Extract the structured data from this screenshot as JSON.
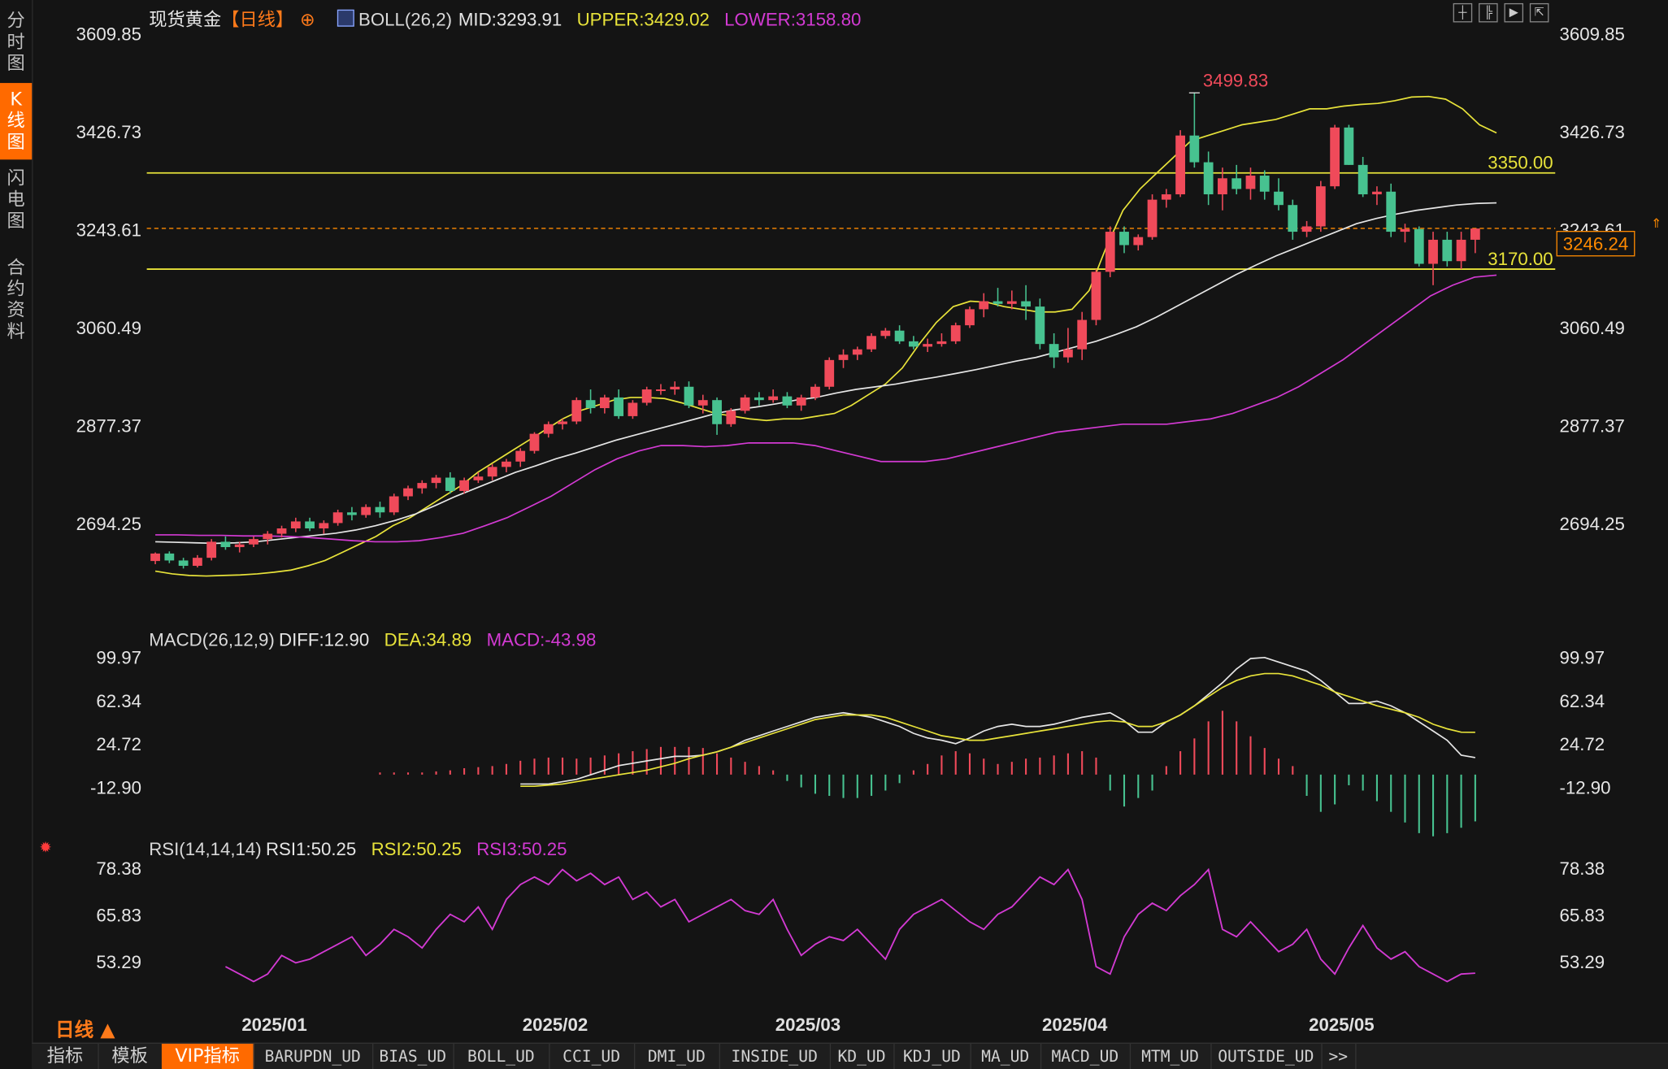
{
  "sidebar": {
    "tabs": [
      {
        "label": "分时图",
        "active": false
      },
      {
        "label": "K线图",
        "active": true
      },
      {
        "label": "闪电图",
        "active": false
      },
      {
        "label": "合约资料",
        "active": false
      }
    ]
  },
  "header": {
    "title": "现货黄金",
    "period_tag": "【日线】",
    "boll": "BOLL(26,2)",
    "mid": "MID:3293.91",
    "upper": "UPPER:3429.02",
    "lower": "LOWER:3158.80"
  },
  "macd_legend": {
    "name": "MACD(26,12,9)",
    "diff": "DIFF:12.90",
    "dea": "DEA:34.89",
    "macd": "MACD:-43.98"
  },
  "rsi_legend": {
    "name": "RSI(14,14,14)",
    "rsi1": "RSI1:50.25",
    "rsi2": "RSI2:50.25",
    "rsi3": "RSI3:50.25"
  },
  "period_selector": "日线 ▲",
  "current_price": "3246.24",
  "colors": {
    "up": "#f04a5a",
    "down": "#47c290",
    "boll_upper": "#e8e33a",
    "boll_mid": "#e6e6e6",
    "boll_lower": "#d33ad3",
    "accent": "#ff6a00"
  },
  "bottom_tabs": [
    {
      "label": "指标",
      "active": false
    },
    {
      "label": "模板",
      "active": false
    },
    {
      "label": "VIP指标",
      "active": true
    },
    {
      "label": "BARUPDN_UD",
      "active": false
    },
    {
      "label": "BIAS_UD",
      "active": false
    },
    {
      "label": "BOLL_UD",
      "active": false
    },
    {
      "label": "CCI_UD",
      "active": false
    },
    {
      "label": "DMI_UD",
      "active": false
    },
    {
      "label": "INSIDE_UD",
      "active": false
    },
    {
      "label": "KD_UD",
      "active": false
    },
    {
      "label": "KDJ_UD",
      "active": false
    },
    {
      "label": "MA_UD",
      "active": false
    },
    {
      "label": "MACD_UD",
      "active": false
    },
    {
      "label": "MTM_UD",
      "active": false
    },
    {
      "label": "OUTSIDE_UD",
      "active": false
    },
    {
      "label": ">>",
      "active": false
    }
  ],
  "chart_data": [
    {
      "type": "candlestick",
      "title": "现货黄金【日线】",
      "y_ticks": [
        "3609.85",
        "3426.73",
        "3243.61",
        "3060.49",
        "2877.37",
        "2694.25"
      ],
      "ylim": [
        2600,
        3610
      ],
      "x_ticks": [
        "2025/01",
        "2025/02",
        "2025/03",
        "2025/04",
        "2025/05"
      ],
      "x_tick_index": [
        6,
        26,
        44,
        63,
        82
      ],
      "annotations": [
        {
          "text": "3499.83",
          "value": 3499.83,
          "index": 74
        },
        {
          "text": "3350.00",
          "value": 3350.0,
          "type": "horizontal-line"
        },
        {
          "text": "3170.00",
          "value": 3170.0,
          "type": "horizontal-line"
        },
        {
          "text": "3246.24",
          "value": 3246.24,
          "type": "last-price-line"
        }
      ],
      "ohlc": [
        [
          2624,
          2640,
          2618,
          2638
        ],
        [
          2638,
          2642,
          2620,
          2625
        ],
        [
          2625,
          2630,
          2610,
          2615
        ],
        [
          2615,
          2635,
          2612,
          2630
        ],
        [
          2630,
          2665,
          2625,
          2660
        ],
        [
          2660,
          2670,
          2645,
          2650
        ],
        [
          2650,
          2660,
          2640,
          2655
        ],
        [
          2655,
          2670,
          2650,
          2665
        ],
        [
          2665,
          2680,
          2655,
          2675
        ],
        [
          2675,
          2690,
          2668,
          2685
        ],
        [
          2685,
          2705,
          2678,
          2698
        ],
        [
          2698,
          2705,
          2680,
          2685
        ],
        [
          2685,
          2700,
          2675,
          2695
        ],
        [
          2695,
          2720,
          2690,
          2715
        ],
        [
          2715,
          2725,
          2700,
          2710
        ],
        [
          2710,
          2730,
          2705,
          2725
        ],
        [
          2725,
          2735,
          2705,
          2715
        ],
        [
          2715,
          2750,
          2710,
          2745
        ],
        [
          2745,
          2765,
          2738,
          2760
        ],
        [
          2760,
          2775,
          2750,
          2770
        ],
        [
          2770,
          2785,
          2760,
          2780
        ],
        [
          2780,
          2790,
          2750,
          2755
        ],
        [
          2755,
          2780,
          2750,
          2775
        ],
        [
          2775,
          2790,
          2770,
          2782
        ],
        [
          2782,
          2805,
          2775,
          2800
        ],
        [
          2800,
          2815,
          2790,
          2810
        ],
        [
          2810,
          2835,
          2800,
          2830
        ],
        [
          2830,
          2865,
          2825,
          2862
        ],
        [
          2862,
          2885,
          2855,
          2880
        ],
        [
          2880,
          2890,
          2870,
          2885
        ],
        [
          2885,
          2930,
          2880,
          2925
        ],
        [
          2925,
          2945,
          2900,
          2910
        ],
        [
          2910,
          2935,
          2900,
          2930
        ],
        [
          2930,
          2945,
          2890,
          2895
        ],
        [
          2895,
          2925,
          2890,
          2920
        ],
        [
          2920,
          2950,
          2915,
          2945
        ],
        [
          2945,
          2955,
          2935,
          2945
        ],
        [
          2945,
          2960,
          2935,
          2950
        ],
        [
          2950,
          2960,
          2910,
          2915
        ],
        [
          2915,
          2935,
          2900,
          2925
        ],
        [
          2925,
          2930,
          2860,
          2880
        ],
        [
          2880,
          2910,
          2875,
          2905
        ],
        [
          2905,
          2935,
          2900,
          2930
        ],
        [
          2930,
          2940,
          2915,
          2925
        ],
        [
          2925,
          2945,
          2920,
          2932
        ],
        [
          2932,
          2940,
          2910,
          2915
        ],
        [
          2915,
          2935,
          2905,
          2930
        ],
        [
          2930,
          2955,
          2925,
          2950
        ],
        [
          2950,
          3005,
          2945,
          3000
        ],
        [
          3000,
          3020,
          2985,
          3010
        ],
        [
          3010,
          3025,
          3000,
          3020
        ],
        [
          3020,
          3050,
          3015,
          3045
        ],
        [
          3045,
          3060,
          3040,
          3055
        ],
        [
          3055,
          3065,
          3030,
          3035
        ],
        [
          3035,
          3045,
          3020,
          3025
        ],
        [
          3025,
          3040,
          3015,
          3030
        ],
        [
          3030,
          3050,
          3025,
          3035
        ],
        [
          3035,
          3070,
          3030,
          3065
        ],
        [
          3065,
          3100,
          3060,
          3095
        ],
        [
          3095,
          3125,
          3080,
          3110
        ],
        [
          3110,
          3135,
          3100,
          3105
        ],
        [
          3105,
          3130,
          3095,
          3110
        ],
        [
          3110,
          3140,
          3075,
          3100
        ],
        [
          3100,
          3115,
          3020,
          3030
        ],
        [
          3030,
          3050,
          2985,
          3005
        ],
        [
          3005,
          3060,
          2995,
          3020
        ],
        [
          3020,
          3090,
          3000,
          3075
        ],
        [
          3075,
          3170,
          3065,
          3165
        ],
        [
          3165,
          3250,
          3155,
          3240
        ],
        [
          3240,
          3250,
          3200,
          3215
        ],
        [
          3215,
          3235,
          3205,
          3230
        ],
        [
          3230,
          3310,
          3225,
          3300
        ],
        [
          3300,
          3320,
          3285,
          3310
        ],
        [
          3310,
          3430,
          3305,
          3420
        ],
        [
          3420,
          3500,
          3360,
          3370
        ],
        [
          3370,
          3390,
          3290,
          3310
        ],
        [
          3310,
          3360,
          3280,
          3340
        ],
        [
          3340,
          3365,
          3310,
          3320
        ],
        [
          3320,
          3360,
          3300,
          3345
        ],
        [
          3345,
          3355,
          3300,
          3315
        ],
        [
          3315,
          3340,
          3280,
          3290
        ],
        [
          3290,
          3300,
          3225,
          3240
        ],
        [
          3240,
          3260,
          3230,
          3250
        ],
        [
          3250,
          3335,
          3240,
          3325
        ],
        [
          3325,
          3440,
          3320,
          3435
        ],
        [
          3435,
          3440,
          3365,
          3365
        ],
        [
          3365,
          3380,
          3305,
          3310
        ],
        [
          3310,
          3325,
          3290,
          3315
        ],
        [
          3315,
          3330,
          3230,
          3240
        ],
        [
          3240,
          3255,
          3220,
          3245
        ],
        [
          3245,
          3250,
          3175,
          3180
        ],
        [
          3180,
          3240,
          3140,
          3225
        ],
        [
          3225,
          3240,
          3175,
          3185
        ],
        [
          3185,
          3240,
          3170,
          3225
        ],
        [
          3225,
          3245,
          3200,
          3246
        ]
      ],
      "boll_upper": [
        2605,
        2600,
        2597,
        2596,
        2597,
        2598,
        2600,
        2603,
        2607,
        2615,
        2625,
        2640,
        2655,
        2670,
        2690,
        2705,
        2725,
        2745,
        2765,
        2790,
        2810,
        2830,
        2850,
        2870,
        2890,
        2905,
        2915,
        2925,
        2930,
        2930,
        2928,
        2920,
        2910,
        2900,
        2895,
        2890,
        2887,
        2890,
        2890,
        2895,
        2900,
        2915,
        2935,
        2955,
        2985,
        3030,
        3070,
        3100,
        3110,
        3108,
        3100,
        3095,
        3090,
        3090,
        3095,
        3130,
        3210,
        3280,
        3320,
        3350,
        3380,
        3410,
        3420,
        3430,
        3440,
        3445,
        3450,
        3460,
        3470,
        3470,
        3475,
        3478,
        3480,
        3485,
        3492,
        3493,
        3488,
        3470,
        3440,
        3425
      ],
      "boll_mid": [
        2660,
        2659,
        2658,
        2657,
        2658,
        2660,
        2664,
        2668,
        2672,
        2676,
        2682,
        2690,
        2700,
        2712,
        2728,
        2745,
        2760,
        2775,
        2790,
        2802,
        2815,
        2826,
        2838,
        2850,
        2860,
        2870,
        2880,
        2890,
        2900,
        2907,
        2912,
        2918,
        2925,
        2930,
        2938,
        2945,
        2950,
        2955,
        2962,
        2968,
        2975,
        2982,
        2990,
        2998,
        3005,
        3015,
        3025,
        3035,
        3048,
        3062,
        3080,
        3100,
        3120,
        3140,
        3160,
        3178,
        3195,
        3210,
        3225,
        3240,
        3255,
        3265,
        3273,
        3280,
        3285,
        3290,
        3293,
        3293.91
      ],
      "boll_lower": [
        2673,
        2673,
        2672,
        2672,
        2671,
        2671,
        2670,
        2668,
        2665,
        2662,
        2660,
        2660,
        2662,
        2668,
        2676,
        2690,
        2705,
        2725,
        2745,
        2770,
        2795,
        2815,
        2830,
        2840,
        2840,
        2838,
        2840,
        2845,
        2845,
        2845,
        2840,
        2830,
        2820,
        2810,
        2810,
        2810,
        2815,
        2825,
        2835,
        2845,
        2855,
        2865,
        2870,
        2875,
        2880,
        2880,
        2880,
        2885,
        2890,
        2900,
        2915,
        2930,
        2950,
        2975,
        3000,
        3030,
        3060,
        3090,
        3120,
        3140,
        3155,
        3158.8
      ]
    },
    {
      "type": "macd",
      "title": "MACD(26,12,9)",
      "y_ticks": [
        "99.97",
        "62.34",
        "24.72",
        "-12.90"
      ],
      "ylim": [
        -50,
        110
      ],
      "diff": [
        -10,
        -10,
        -10,
        -8,
        -6,
        -2,
        2,
        6,
        8,
        10,
        12,
        14,
        14,
        15,
        18,
        22,
        28,
        32,
        36,
        40,
        44,
        48,
        50,
        52,
        50,
        48,
        44,
        40,
        34,
        30,
        28,
        25,
        30,
        36,
        40,
        42,
        40,
        40,
        42,
        45,
        48,
        50,
        52,
        45,
        35,
        35,
        44,
        50,
        58,
        68,
        78,
        90,
        99,
        100,
        96,
        92,
        88,
        80,
        70,
        60,
        60,
        62,
        58,
        52,
        44,
        36,
        28,
        15,
        12.9
      ],
      "dea": [
        -12,
        -12,
        -11,
        -10,
        -8,
        -6,
        -4,
        -2,
        0,
        2,
        5,
        8,
        12,
        15,
        18,
        22,
        26,
        30,
        34,
        38,
        42,
        46,
        48,
        50,
        50,
        50,
        48,
        44,
        40,
        36,
        32,
        30,
        28,
        28,
        30,
        32,
        34,
        36,
        38,
        40,
        42,
        44,
        45,
        44,
        40,
        40,
        44,
        50,
        58,
        66,
        74,
        80,
        84,
        86,
        86,
        84,
        80,
        76,
        70,
        66,
        62,
        58,
        55,
        52,
        48,
        42,
        38,
        35,
        34.89
      ],
      "macd_hist": [
        2,
        2,
        2,
        2,
        3,
        4,
        6,
        7,
        8,
        10,
        13,
        15,
        16,
        16,
        15,
        16,
        18,
        20,
        22,
        24,
        26,
        26,
        26,
        25,
        20,
        16,
        12,
        8,
        4,
        -6,
        -12,
        -18,
        -20,
        -22,
        -22,
        -20,
        -15,
        -8,
        4,
        10,
        18,
        22,
        20,
        15,
        10,
        12,
        15,
        16,
        18,
        20,
        22,
        16,
        -15,
        -30,
        -22,
        -15,
        8,
        22,
        34,
        50,
        60,
        50,
        36,
        25,
        15,
        8,
        -20,
        -35,
        -28,
        -10,
        -15,
        -25,
        -35,
        -45,
        -55,
        -58,
        -55,
        -50,
        -43.98
      ]
    },
    {
      "type": "line",
      "title": "RSI(14,14,14)",
      "y_ticks": [
        "78.38",
        "65.83",
        "53.29"
      ],
      "ylim": [
        48,
        82
      ],
      "rsi": [
        52,
        50,
        48,
        50,
        55,
        53,
        54,
        56,
        58,
        60,
        55,
        58,
        62,
        60,
        57,
        62,
        66,
        64,
        68,
        62,
        70,
        74,
        76,
        74,
        78,
        75,
        77,
        74,
        76,
        70,
        72,
        68,
        70,
        64,
        66,
        68,
        70,
        67,
        66,
        70,
        62,
        55,
        58,
        60,
        59,
        62,
        58,
        54,
        62,
        66,
        68,
        70,
        67,
        64,
        62,
        66,
        68,
        72,
        76,
        74,
        78,
        70,
        52,
        50,
        60,
        66,
        69,
        67,
        71,
        74,
        78,
        62,
        60,
        64,
        60,
        56,
        58,
        62,
        54,
        50,
        57,
        63,
        57,
        54,
        56,
        52,
        50,
        48,
        50,
        50.25
      ]
    }
  ]
}
